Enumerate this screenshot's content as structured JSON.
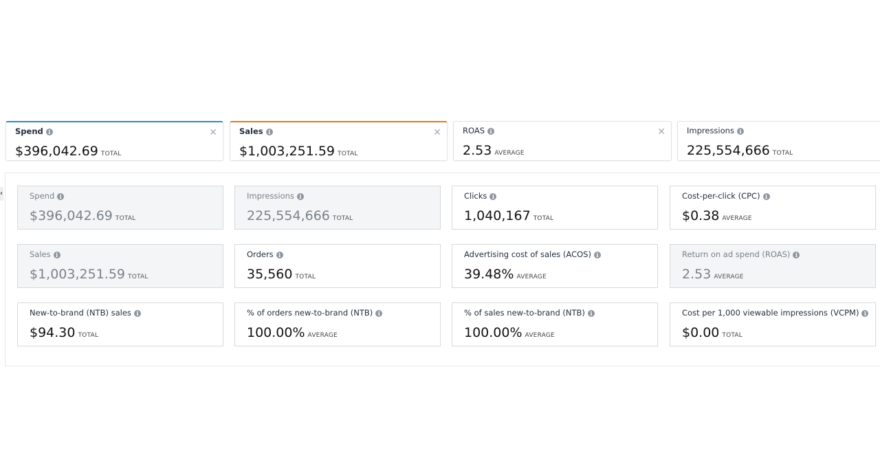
{
  "selected_metrics": [
    {
      "label": "Spend",
      "value": "$396,042.69",
      "unit": "TOTAL",
      "accent": "#2e8bc0",
      "closable": true
    },
    {
      "label": "Sales",
      "value": "$1,003,251.59",
      "unit": "TOTAL",
      "accent": "#e47911",
      "closable": true
    },
    {
      "label": "ROAS",
      "value": "2.53",
      "unit": "AVERAGE",
      "accent": "",
      "closable": true
    },
    {
      "label": "Impressions",
      "value": "225,554,666",
      "unit": "TOTAL",
      "accent": "",
      "closable": false
    }
  ],
  "metric_cards": [
    {
      "label": "Spend",
      "value": "$396,042.69",
      "unit": "TOTAL",
      "disabled": true
    },
    {
      "label": "Impressions",
      "value": "225,554,666",
      "unit": "TOTAL",
      "disabled": true
    },
    {
      "label": "Clicks",
      "value": "1,040,167",
      "unit": "TOTAL",
      "disabled": false
    },
    {
      "label": "Cost-per-click (CPC)",
      "value": "$0.38",
      "unit": "AVERAGE",
      "disabled": false
    },
    {
      "label": "Sales",
      "value": "$1,003,251.59",
      "unit": "TOTAL",
      "disabled": true
    },
    {
      "label": "Orders",
      "value": "35,560",
      "unit": "TOTAL",
      "disabled": false
    },
    {
      "label": "Advertising cost of sales (ACOS)",
      "value": "39.48%",
      "unit": "AVERAGE",
      "disabled": false
    },
    {
      "label": "Return on ad spend (ROAS)",
      "value": "2.53",
      "unit": "AVERAGE",
      "disabled": true
    },
    {
      "label": "New-to-brand (NTB) sales",
      "value": "$94.30",
      "unit": "TOTAL",
      "disabled": false
    },
    {
      "label": "% of orders new-to-brand (NTB)",
      "value": "100.00%",
      "unit": "AVERAGE",
      "disabled": false
    },
    {
      "label": "% of sales new-to-brand (NTB)",
      "value": "100.00%",
      "unit": "AVERAGE",
      "disabled": false
    },
    {
      "label": "Cost per 1,000 viewable impressions (VCPM)",
      "value": "$0.00",
      "unit": "TOTAL",
      "disabled": false
    }
  ],
  "icons": {
    "info": "info-icon",
    "close": "close-icon"
  }
}
